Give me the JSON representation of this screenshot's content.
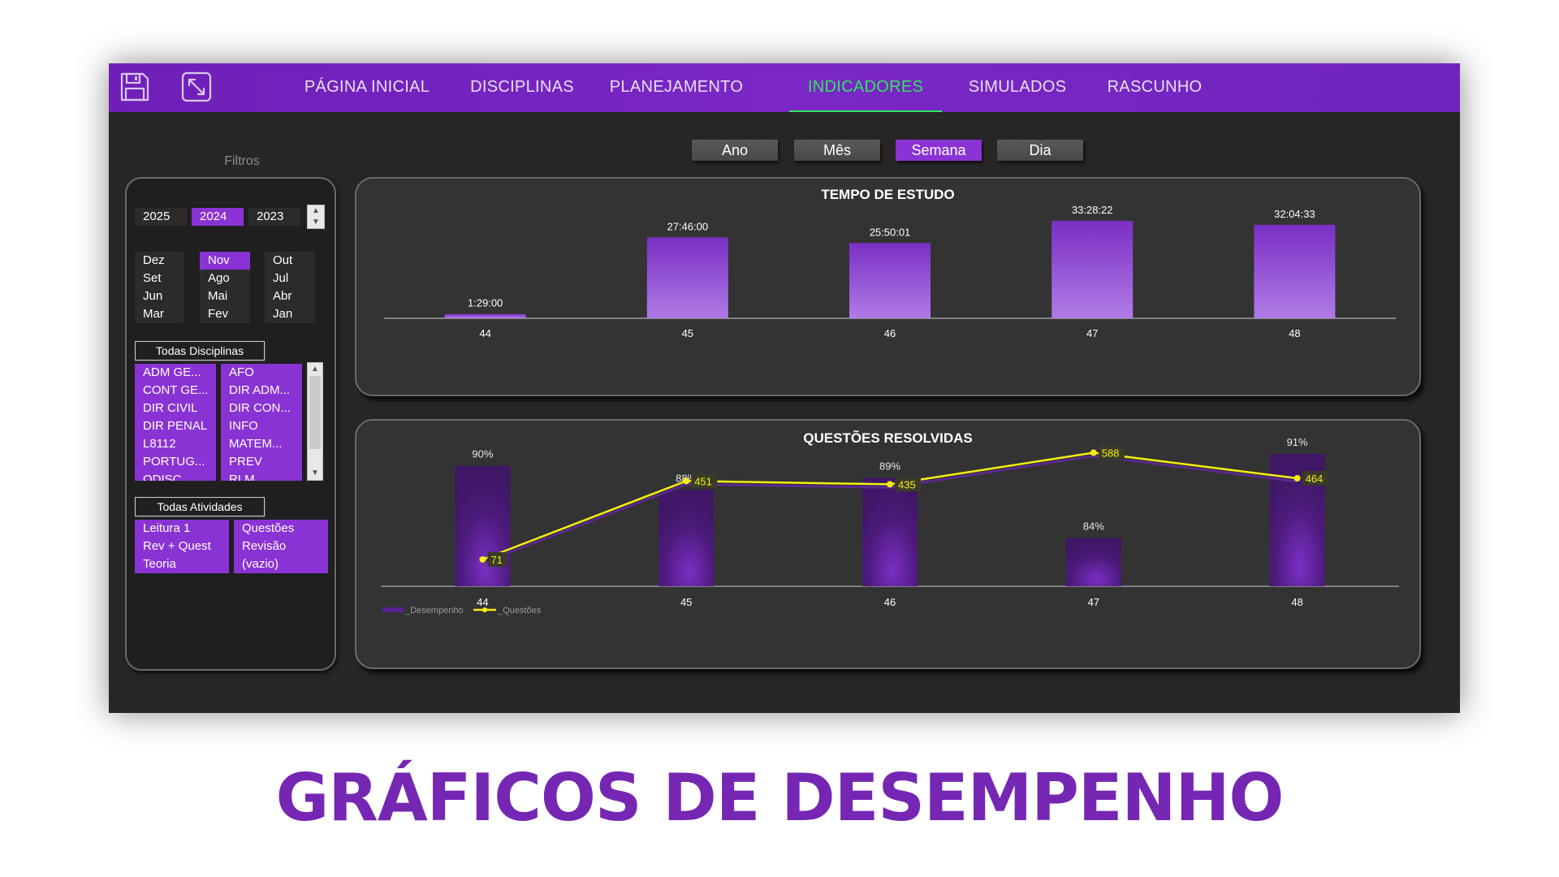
{
  "nav": {
    "tabs": [
      {
        "label": "PÁGINA INICIAL"
      },
      {
        "label": "DISCIPLINAS"
      },
      {
        "label": "PLANEJAMENTO"
      },
      {
        "label": "INDICADORES",
        "active": true
      },
      {
        "label": "SIMULADOS"
      },
      {
        "label": "RASCUNHO"
      }
    ],
    "icons": [
      "save-icon",
      "expand-icon"
    ]
  },
  "filters": {
    "title": "Filtros",
    "years": [
      "2025",
      "2024",
      "2023"
    ],
    "selected_year": "2024",
    "months": [
      "Dez",
      "Nov",
      "Out",
      "Set",
      "Ago",
      "Jul",
      "Jun",
      "Mai",
      "Abr",
      "Mar",
      "Fev",
      "Jan"
    ],
    "selected_month": "Nov",
    "disciplines_button": "Todas Disciplinas",
    "disciplines": [
      "ADM GE...",
      "AFO",
      "CONT GE...",
      "DIR ADM...",
      "DIR CIVIL",
      "DIR CON...",
      "DIR PENAL",
      "INFO",
      "L8112",
      "MATEM...",
      "PORTUG...",
      "PREV",
      "ODISC...",
      "RLM..."
    ],
    "activities_button": "Todas Atividades",
    "activities": [
      "Leitura 1",
      "Questões",
      "Rev + Quest",
      "Revisão",
      "Teoria",
      "(vazio)"
    ]
  },
  "period": {
    "buttons": [
      "Ano",
      "Mês",
      "Semana",
      "Dia"
    ],
    "selected": "Semana"
  },
  "colors": {
    "accent": "#8a33d4",
    "nav_active": "#2ee85a",
    "line": "#f5f012",
    "banner": "#7527b3"
  },
  "chart_data": [
    {
      "type": "bar",
      "title": "TEMPO DE ESTUDO",
      "categories": [
        "44",
        "45",
        "46",
        "47",
        "48"
      ],
      "labels": [
        "1:29:00",
        "27:46:00",
        "25:50:01",
        "33:28:22",
        "32:04:33"
      ],
      "values_hours": [
        1.48,
        27.77,
        25.83,
        33.47,
        32.08
      ],
      "ylim": [
        0,
        34
      ]
    },
    {
      "type": "bar+line",
      "title": "QUESTÕES RESOLVIDAS",
      "categories": [
        "44",
        "45",
        "46",
        "47",
        "48"
      ],
      "series": [
        {
          "name": "_Desempenho",
          "type": "bar",
          "values": [
            90,
            88,
            89,
            84,
            91
          ],
          "labels": [
            "90%",
            "88%",
            "89%",
            "84%",
            "91%"
          ]
        },
        {
          "name": "_Questões",
          "type": "line",
          "values": [
            71,
            451,
            435,
            588,
            464
          ]
        }
      ]
    }
  ],
  "banner": "GRÁFICOS DE DESEMPENHO"
}
